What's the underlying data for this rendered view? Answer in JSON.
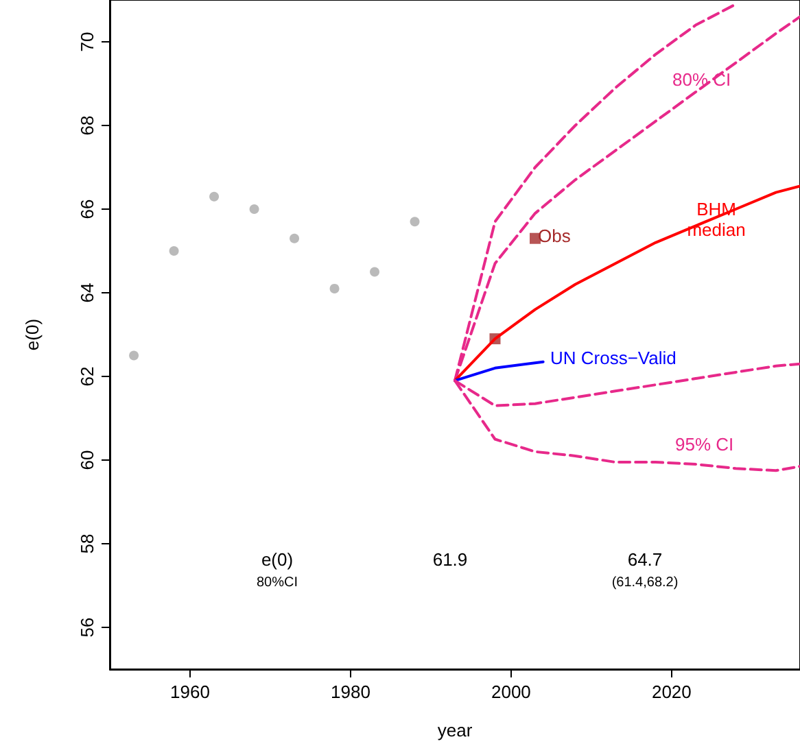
{
  "chart_data": {
    "type": "line",
    "xlabel": "year",
    "ylabel": "e(0)",
    "xlim": [
      1950,
      2036
    ],
    "ylim": [
      55,
      71
    ],
    "xticks": [
      1960,
      1980,
      2000,
      2020
    ],
    "yticks": [
      56,
      58,
      60,
      62,
      64,
      66,
      68,
      70
    ],
    "grid": false,
    "series": [
      {
        "type": "scatter",
        "marker": "circle",
        "color": "#a9a9a9",
        "x": [
          1953,
          1958,
          1963,
          1968,
          1973,
          1978,
          1983,
          1988
        ],
        "values": [
          62.5,
          65.0,
          66.3,
          66.0,
          65.3,
          64.1,
          64.5,
          65.7
        ]
      },
      {
        "color": "#e7298a",
        "line_style": "dashed",
        "x": [
          1993,
          1998,
          2003,
          2008,
          2013,
          2018,
          2023,
          2028
        ],
        "values": [
          61.9,
          65.7,
          67.0,
          68.0,
          68.9,
          69.7,
          70.4,
          70.9
        ]
      },
      {
        "color": "#e7298a",
        "line_style": "dashed",
        "x": [
          1993,
          1998,
          2003,
          2008,
          2013,
          2018,
          2023,
          2028,
          2033,
          2036
        ],
        "values": [
          61.9,
          64.7,
          65.9,
          66.7,
          67.4,
          68.1,
          68.8,
          69.5,
          70.2,
          70.6
        ]
      },
      {
        "color": "#ff0000",
        "line_style": "solid",
        "x": [
          1993,
          1998,
          2003,
          2008,
          2013,
          2018,
          2023,
          2028,
          2033,
          2036
        ],
        "values": [
          61.9,
          62.9,
          63.6,
          64.2,
          64.7,
          65.2,
          65.6,
          66.0,
          66.4,
          66.55
        ]
      },
      {
        "color": "#0000ff",
        "line_style": "solid",
        "x": [
          1993,
          1998,
          2004
        ],
        "values": [
          61.9,
          62.2,
          62.35
        ]
      },
      {
        "color": "#e7298a",
        "line_style": "dashed",
        "x": [
          1993,
          1998,
          2003,
          2008,
          2013,
          2018,
          2023,
          2028,
          2033,
          2036
        ],
        "values": [
          61.9,
          61.3,
          61.35,
          61.5,
          61.65,
          61.8,
          61.95,
          62.1,
          62.25,
          62.3
        ]
      },
      {
        "color": "#e7298a",
        "line_style": "dashed",
        "x": [
          1993,
          1998,
          2003,
          2008,
          2013,
          2018,
          2023,
          2028,
          2033,
          2036
        ],
        "values": [
          61.9,
          60.5,
          60.2,
          60.1,
          59.95,
          59.95,
          59.9,
          59.8,
          59.75,
          59.85
        ]
      },
      {
        "type": "scatter",
        "marker": "square",
        "color": "#a52a2a",
        "x": [
          1998,
          2003
        ],
        "values": [
          62.9,
          65.3
        ]
      }
    ],
    "annotations": [
      "Obs",
      "80% CI",
      "BHM\nmedian",
      "UN Cross−Valid",
      "95% CI",
      "e(0)",
      "80%CI",
      "61.9",
      "64.7",
      "(61.4,68.2)"
    ]
  }
}
